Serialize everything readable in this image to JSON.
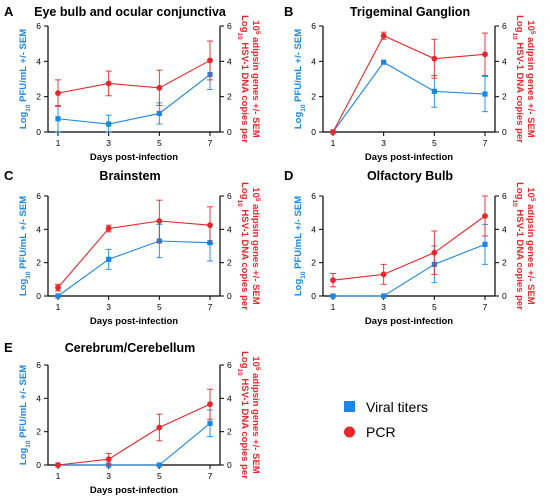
{
  "legend": {
    "items": [
      {
        "label": "Viral titers",
        "color": "#1a87e6",
        "marker": "square"
      },
      {
        "label": "PCR",
        "color": "#e8262b",
        "marker": "circle"
      }
    ]
  },
  "colors": {
    "titer": "#1a87e6",
    "pcr": "#e8262b",
    "axis": "#000000"
  },
  "chart_data": [
    {
      "type": "line",
      "letter": "A",
      "title": "Eye bulb and ocular conjunctiva",
      "xlabel": "Days post-infection",
      "ylabel_left": "Log10 PFU/mL +/- SEM",
      "ylabel_right": "Log10 HSV-1 DNA copies per 10^5 adipsin genes +/- SEM",
      "x": [
        1,
        3,
        5,
        7
      ],
      "ylim_left": [
        0,
        6
      ],
      "ylim_right": [
        0,
        6
      ],
      "yticks": [
        0,
        2,
        4,
        6
      ],
      "series": [
        {
          "name": "Viral titers",
          "axis": "left",
          "values": [
            0.75,
            0.45,
            1.05,
            3.25
          ],
          "err": [
            0.75,
            0.5,
            0.6,
            0.85
          ]
        },
        {
          "name": "PCR",
          "axis": "right",
          "values": [
            2.2,
            2.75,
            2.5,
            4.05
          ],
          "err": [
            0.75,
            0.7,
            1.0,
            1.1
          ]
        }
      ]
    },
    {
      "type": "line",
      "letter": "B",
      "title": "Trigeminal Ganglion",
      "xlabel": "Days post-infection",
      "ylabel_left": "Log10 PFU/mL +/- SEM",
      "ylabel_right": "Log10 HSV-1 DNA copies per 10^5 adipsin genes +/- SEM",
      "x": [
        1,
        3,
        5,
        7
      ],
      "ylim_left": [
        0,
        6
      ],
      "ylim_right": [
        0,
        6
      ],
      "yticks": [
        0,
        2,
        4,
        6
      ],
      "series": [
        {
          "name": "Viral titers",
          "axis": "left",
          "values": [
            0,
            3.95,
            2.3,
            2.15
          ],
          "err": [
            0,
            0,
            0.9,
            1.0
          ]
        },
        {
          "name": "PCR",
          "axis": "right",
          "values": [
            0,
            5.45,
            4.15,
            4.4
          ],
          "err": [
            0,
            0.2,
            1.1,
            1.2
          ]
        }
      ]
    },
    {
      "type": "line",
      "letter": "C",
      "title": "Brainstem",
      "xlabel": "Days post-infection",
      "ylabel_left": "Log10 PFU/mL +/- SEM",
      "ylabel_right": "Log10 HSV-1 DNA copies per 10^5 adipsin genes +/- SEM",
      "x": [
        1,
        3,
        5,
        7
      ],
      "ylim_left": [
        0,
        6
      ],
      "ylim_right": [
        0,
        6
      ],
      "yticks": [
        0,
        2,
        4,
        6
      ],
      "series": [
        {
          "name": "Viral titers",
          "axis": "left",
          "values": [
            0,
            2.2,
            3.3,
            3.2
          ],
          "err": [
            0,
            0.6,
            1.0,
            1.1
          ]
        },
        {
          "name": "PCR",
          "axis": "right",
          "values": [
            0.5,
            4.05,
            4.5,
            4.25
          ],
          "err": [
            0.2,
            0.2,
            1.25,
            1.1
          ]
        }
      ]
    },
    {
      "type": "line",
      "letter": "D",
      "title": "Olfactory Bulb",
      "xlabel": "Days post-infection",
      "ylabel_left": "Log10 PFU/mL +/- SEM",
      "ylabel_right": "Log10 HSV-1 DNA copies per 10^5 adipsin genes +/- SEM",
      "x": [
        1,
        3,
        5,
        7
      ],
      "ylim_left": [
        0,
        6
      ],
      "ylim_right": [
        0,
        6
      ],
      "yticks": [
        0,
        2,
        4,
        6
      ],
      "series": [
        {
          "name": "Viral titers",
          "axis": "left",
          "values": [
            0,
            0,
            1.9,
            3.1
          ],
          "err": [
            0,
            0,
            1.1,
            1.2
          ]
        },
        {
          "name": "PCR",
          "axis": "right",
          "values": [
            0.95,
            1.3,
            2.6,
            4.8
          ],
          "err": [
            0.4,
            0.6,
            1.3,
            1.2
          ]
        }
      ]
    },
    {
      "type": "line",
      "letter": "E",
      "title": "Cerebrum/Cerebellum",
      "xlabel": "Days post-infection",
      "ylabel_left": "Log10 PFU/mL +/- SEM",
      "ylabel_right": "Log10 HSV-1 DNA copies per 10^5 adipsin genes +/- SEM",
      "x": [
        1,
        3,
        5,
        7
      ],
      "ylim_left": [
        0,
        6
      ],
      "ylim_right": [
        0,
        6
      ],
      "yticks": [
        0,
        2,
        4,
        6
      ],
      "series": [
        {
          "name": "Viral titers",
          "axis": "left",
          "values": [
            0,
            0,
            0,
            2.5
          ],
          "err": [
            0,
            0,
            0,
            0.8
          ]
        },
        {
          "name": "PCR",
          "axis": "right",
          "values": [
            0,
            0.35,
            2.25,
            3.65
          ],
          "err": [
            0,
            0.35,
            0.8,
            0.9
          ]
        }
      ]
    }
  ]
}
